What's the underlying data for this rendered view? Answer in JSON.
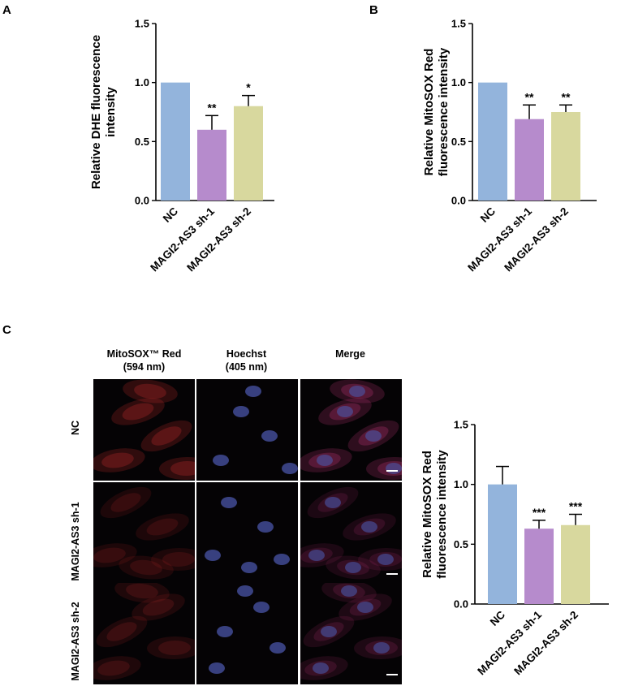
{
  "panels": {
    "a": "A",
    "b": "B",
    "c": "C"
  },
  "colors": {
    "nc": "#93b4dc",
    "sh1": "#b68bcc",
    "sh2": "#d8d89e",
    "red": "#cc2d2d",
    "blue": "#4a56a8",
    "merge": "#c2357a"
  },
  "chart_data": [
    {
      "type": "bar",
      "categories": [
        "NC",
        "MAGI2-AS3 sh-1",
        "MAGI2-AS3 sh-2"
      ],
      "values": [
        1.0,
        0.6,
        0.8
      ],
      "errors": [
        0.0,
        0.12,
        0.09
      ],
      "significance": [
        "",
        "**",
        "*"
      ],
      "ylabel": [
        "Relative DHE fluorescence",
        "intensity"
      ],
      "ylim": [
        0,
        1.5
      ],
      "yticks": [
        "0.0",
        "0.5",
        "1.0",
        "1.5"
      ],
      "grid": false
    },
    {
      "type": "bar",
      "categories": [
        "NC",
        "MAGI2-AS3 sh-1",
        "MAGI2-AS3 sh-2"
      ],
      "values": [
        1.0,
        0.69,
        0.75
      ],
      "errors": [
        0.0,
        0.12,
        0.06
      ],
      "significance": [
        "",
        "**",
        "**"
      ],
      "ylabel": [
        "Relative MitoSOX Red",
        "fluorescence intensity"
      ],
      "ylim": [
        0,
        1.5
      ],
      "yticks": [
        "0.0",
        "0.5",
        "1.0",
        "1.5"
      ],
      "grid": false
    },
    {
      "type": "bar",
      "categories": [
        "NC",
        "MAGI2-AS3 sh-1",
        "MAGI2-AS3 sh-2"
      ],
      "values": [
        1.0,
        0.63,
        0.66
      ],
      "errors": [
        0.15,
        0.07,
        0.09
      ],
      "significance": [
        "",
        "***",
        "***"
      ],
      "ylabel": [
        "Relative MitoSOX Red",
        "fluorescence intensity"
      ],
      "ylim": [
        0,
        1.5
      ],
      "yticks": [
        "0.0",
        "0.5",
        "1.0",
        "1.5"
      ],
      "grid": false
    }
  ],
  "microscopy": {
    "columns": [
      {
        "line1": "MitoSOX™ Red",
        "line2": "(594 nm)"
      },
      {
        "line1": "Hoechst",
        "line2": "(405 nm)"
      },
      {
        "line1": "Merge",
        "line2": ""
      }
    ],
    "rows": [
      "NC",
      "MAGI2-AS3 sh-1",
      "MAGI2-AS3 sh-2"
    ],
    "red_intensity": [
      1.0,
      0.55,
      0.6
    ]
  }
}
